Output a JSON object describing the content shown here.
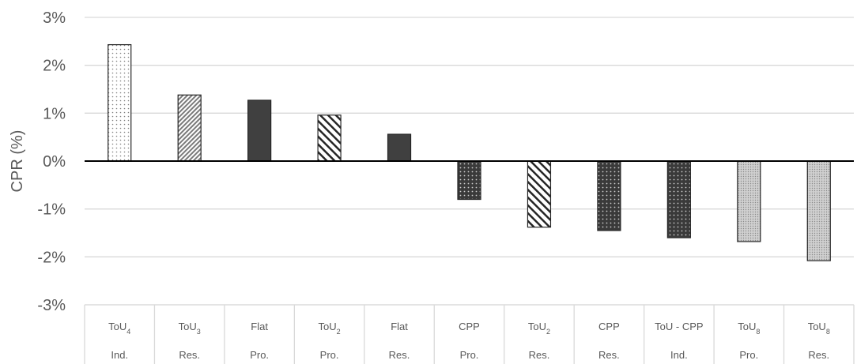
{
  "chart_data": {
    "type": "bar",
    "ylabel": "CPR (%)",
    "ylim": [
      -3,
      3
    ],
    "yticks": [
      "3%",
      "2%",
      "1%",
      "0%",
      "-1%",
      "-2%",
      "-3%"
    ],
    "grid": true,
    "categories": [
      {
        "tariff": "ToU",
        "sub": "4",
        "segment": "Ind."
      },
      {
        "tariff": "ToU",
        "sub": "3",
        "segment": "Res."
      },
      {
        "tariff": "Flat",
        "sub": "",
        "segment": "Pro."
      },
      {
        "tariff": "ToU",
        "sub": "2",
        "segment": "Pro."
      },
      {
        "tariff": "Flat",
        "sub": "",
        "segment": "Res."
      },
      {
        "tariff": "CPP",
        "sub": "",
        "segment": "Pro."
      },
      {
        "tariff": "ToU",
        "sub": "2",
        "segment": "Res."
      },
      {
        "tariff": "CPP",
        "sub": "",
        "segment": "Res."
      },
      {
        "tariff": "ToU - CPP",
        "sub": "",
        "segment": "Ind."
      },
      {
        "tariff": "ToU",
        "sub": "8",
        "segment": "Pro."
      },
      {
        "tariff": "ToU",
        "sub": "8",
        "segment": "Res."
      }
    ],
    "values": [
      2.43,
      1.38,
      1.27,
      0.96,
      0.56,
      -0.8,
      -1.38,
      -1.45,
      -1.6,
      -1.68,
      -2.08
    ],
    "patterns": [
      "dots-light",
      "diag-fine",
      "solid",
      "diag-wide",
      "solid",
      "dots-dark",
      "diag-wide",
      "dots-dark",
      "dots-dark",
      "fine-grey",
      "fine-grey"
    ],
    "colors": {
      "bar_dark": "#404040",
      "bar_outline": "#262626",
      "grid": "#d9d9d9",
      "axis": "#000000",
      "text": "#595959"
    }
  }
}
